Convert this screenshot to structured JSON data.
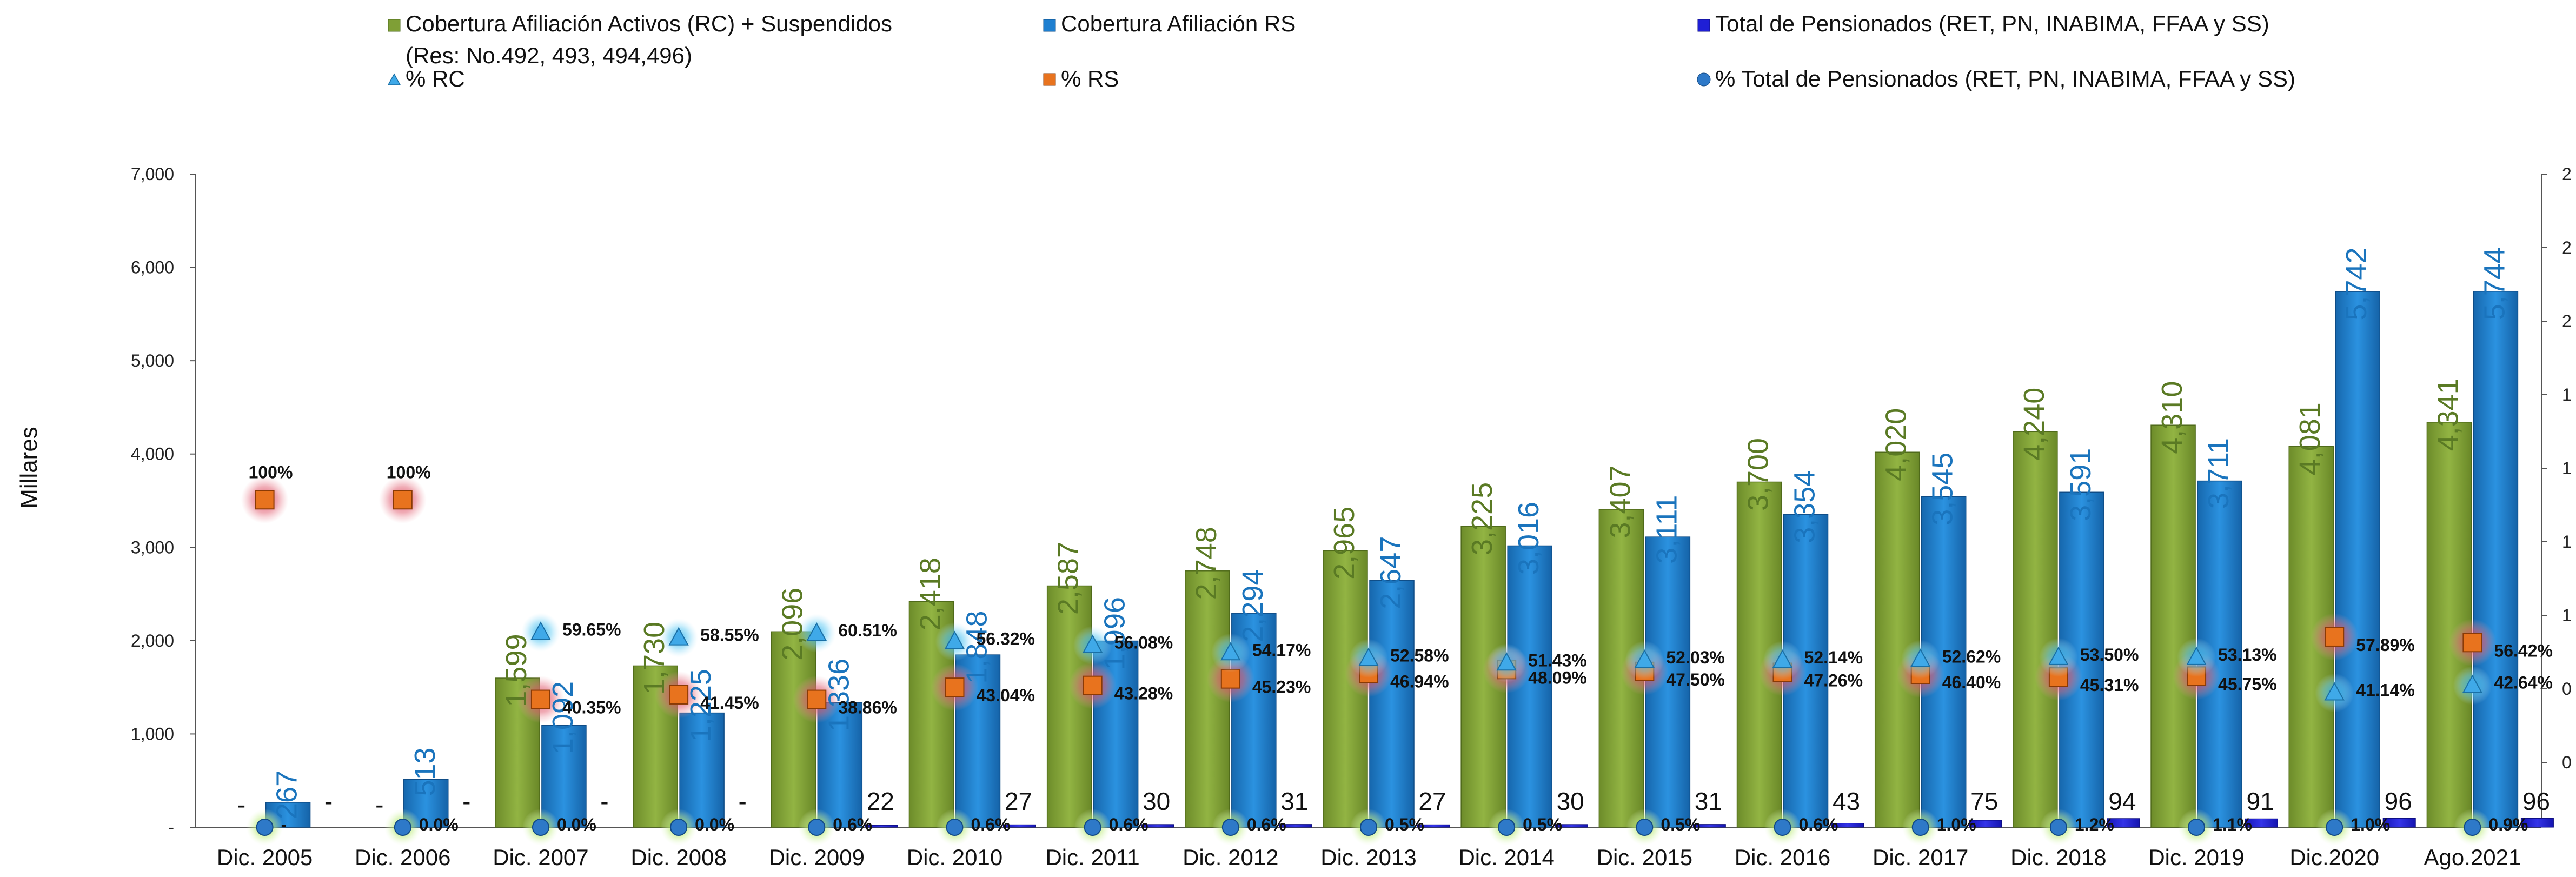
{
  "legend": {
    "green_bar": "Cobertura Afiliación  Activos (RC) + Suspendidos",
    "green_bar_line2": "(Res: No.492, 493, 494,496)",
    "blue_bar": "Cobertura Afiliación RS",
    "pension_bar": "Total de Pensionados (RET, PN, INABIMA, FFAA y SS)",
    "pct_rc": "%  RC",
    "pct_rs": "%   RS",
    "pct_pension": "% Total de Pensionados (RET, PN, INABIMA, FFAA y SS)"
  },
  "colors": {
    "green": "#7f9f36",
    "blue": "#1e7fd0",
    "pension": "#1f1fd6",
    "rc_marker": "#3fa9e8",
    "rs_marker": "#e8731e",
    "pension_marker": "#2e79c8"
  },
  "chart_data": {
    "type": "bar",
    "ylabel": "Millares",
    "ylim": [
      0,
      7000
    ],
    "yticks": [
      "-",
      "1,000",
      "2,000",
      "3,000",
      "4,000",
      "5,000",
      "6,000",
      "7,000"
    ],
    "right_ticks": [
      "0",
      "0",
      "1",
      "1",
      "1",
      "1",
      "2",
      "2",
      "2"
    ],
    "categories": [
      "Dic. 2005",
      "Dic. 2006",
      "Dic. 2007",
      "Dic. 2008",
      "Dic. 2009",
      "Dic. 2010",
      "Dic. 2011",
      "Dic. 2012",
      "Dic. 2013",
      "Dic. 2014",
      "Dic. 2015",
      "Dic. 2016",
      "Dic. 2017",
      "Dic. 2018",
      "Dic. 2019",
      "Dic.2020",
      "Ago.2021"
    ],
    "series": [
      {
        "name": "Cobertura Afiliación  Activos (RC) + Suspendidos (Res: No.492, 493, 494,496)",
        "values": [
          0,
          0,
          1599,
          1730,
          2096,
          2418,
          2587,
          2748,
          2965,
          3225,
          3407,
          3700,
          4020,
          4240,
          4310,
          4081,
          4341
        ],
        "labels": [
          "-",
          "-",
          "1,599",
          "1,730",
          "2,096",
          "2,418",
          "2,587",
          "2,748",
          "2,965",
          "3,225",
          "3,407",
          "3,700",
          "4,020",
          "4,240",
          "4,310",
          "4,081",
          "4,341"
        ]
      },
      {
        "name": "Cobertura Afiliación RS",
        "values": [
          267,
          513,
          1092,
          1225,
          1336,
          1848,
          1996,
          2294,
          2647,
          3016,
          3111,
          3354,
          3545,
          3591,
          3711,
          5742,
          5744
        ],
        "labels": [
          "267",
          "513",
          "1,092",
          "1,225",
          "1,336",
          "1,848",
          "1,996",
          "2,294",
          "2,647",
          "3,016",
          "3,111",
          "3,354",
          "3,545",
          "3,591",
          "3,711",
          "5,742",
          "5,744"
        ]
      },
      {
        "name": "Total de Pensionados (RET, PN, INABIMA, FFAA y SS)",
        "values": [
          0,
          0,
          0,
          0,
          22,
          27,
          30,
          31,
          27,
          30,
          31,
          43,
          75,
          94,
          91,
          96,
          96
        ],
        "labels": [
          "-",
          "-",
          "-",
          "-",
          "22",
          "27",
          "30",
          "31",
          "27",
          "30",
          "31",
          "43",
          "75",
          "94",
          "91",
          "96",
          "96"
        ]
      }
    ],
    "percent_series": [
      {
        "name": "%  RC",
        "marker": "triangle",
        "values": [
          null,
          null,
          59.65,
          58.55,
          60.51,
          56.32,
          56.08,
          54.17,
          52.58,
          51.43,
          52.03,
          52.14,
          52.62,
          53.5,
          53.13,
          41.14,
          42.64
        ],
        "labels": [
          "",
          "",
          "59.65%",
          "58.55%",
          "60.51%",
          "56.32%",
          "56.08%",
          "54.17%",
          "52.58%",
          "51.43%",
          "52.03%",
          "52.14%",
          "52.62%",
          "53.50%",
          "53.13%",
          "41.14%",
          "42.64%"
        ],
        "plot_y": [
          null,
          null,
          2090,
          2030,
          2080,
          1990,
          1950,
          1870,
          1810,
          1760,
          1790,
          1790,
          1800,
          1820,
          1820,
          1440,
          1520
        ]
      },
      {
        "name": "%   RS",
        "marker": "square",
        "values": [
          100,
          100,
          40.35,
          41.45,
          38.86,
          43.04,
          43.28,
          45.23,
          46.94,
          48.09,
          47.5,
          47.26,
          46.4,
          45.31,
          45.75,
          57.89,
          56.42
        ],
        "labels": [
          "100%",
          "100%",
          "40.35%",
          "41.45%",
          "38.86%",
          "43.04%",
          "43.28%",
          "45.23%",
          "46.94%",
          "48.09%",
          "47.50%",
          "47.26%",
          "46.40%",
          "45.31%",
          "45.75%",
          "57.89%",
          "56.42%"
        ],
        "plot_y": [
          3510,
          3510,
          1370,
          1420,
          1370,
          1500,
          1520,
          1590,
          1650,
          1690,
          1670,
          1660,
          1640,
          1610,
          1620,
          2040,
          1980
        ]
      },
      {
        "name": "% Total de Pensionados (RET, PN, INABIMA, FFAA y SS)",
        "marker": "circle",
        "values": [
          0,
          0,
          0,
          0,
          0.6,
          0.6,
          0.6,
          0.6,
          0.5,
          0.5,
          0.5,
          0.6,
          1.0,
          1.2,
          1.1,
          1.0,
          0.9
        ],
        "labels": [
          "-",
          "0.0%",
          "0.0%",
          "0.0%",
          "0.6%",
          "0.6%",
          "0.6%",
          "0.6%",
          "0.5%",
          "0.5%",
          "0.5%",
          "0.6%",
          "1.0%",
          "1.2%",
          "1.1%",
          "1.0%",
          "0.9%"
        ],
        "plot_y": [
          0,
          0,
          0,
          0,
          0,
          0,
          0,
          0,
          0,
          0,
          0,
          0,
          0,
          0,
          0,
          0,
          0
        ]
      }
    ],
    "grid": false,
    "legend_position": "top"
  }
}
